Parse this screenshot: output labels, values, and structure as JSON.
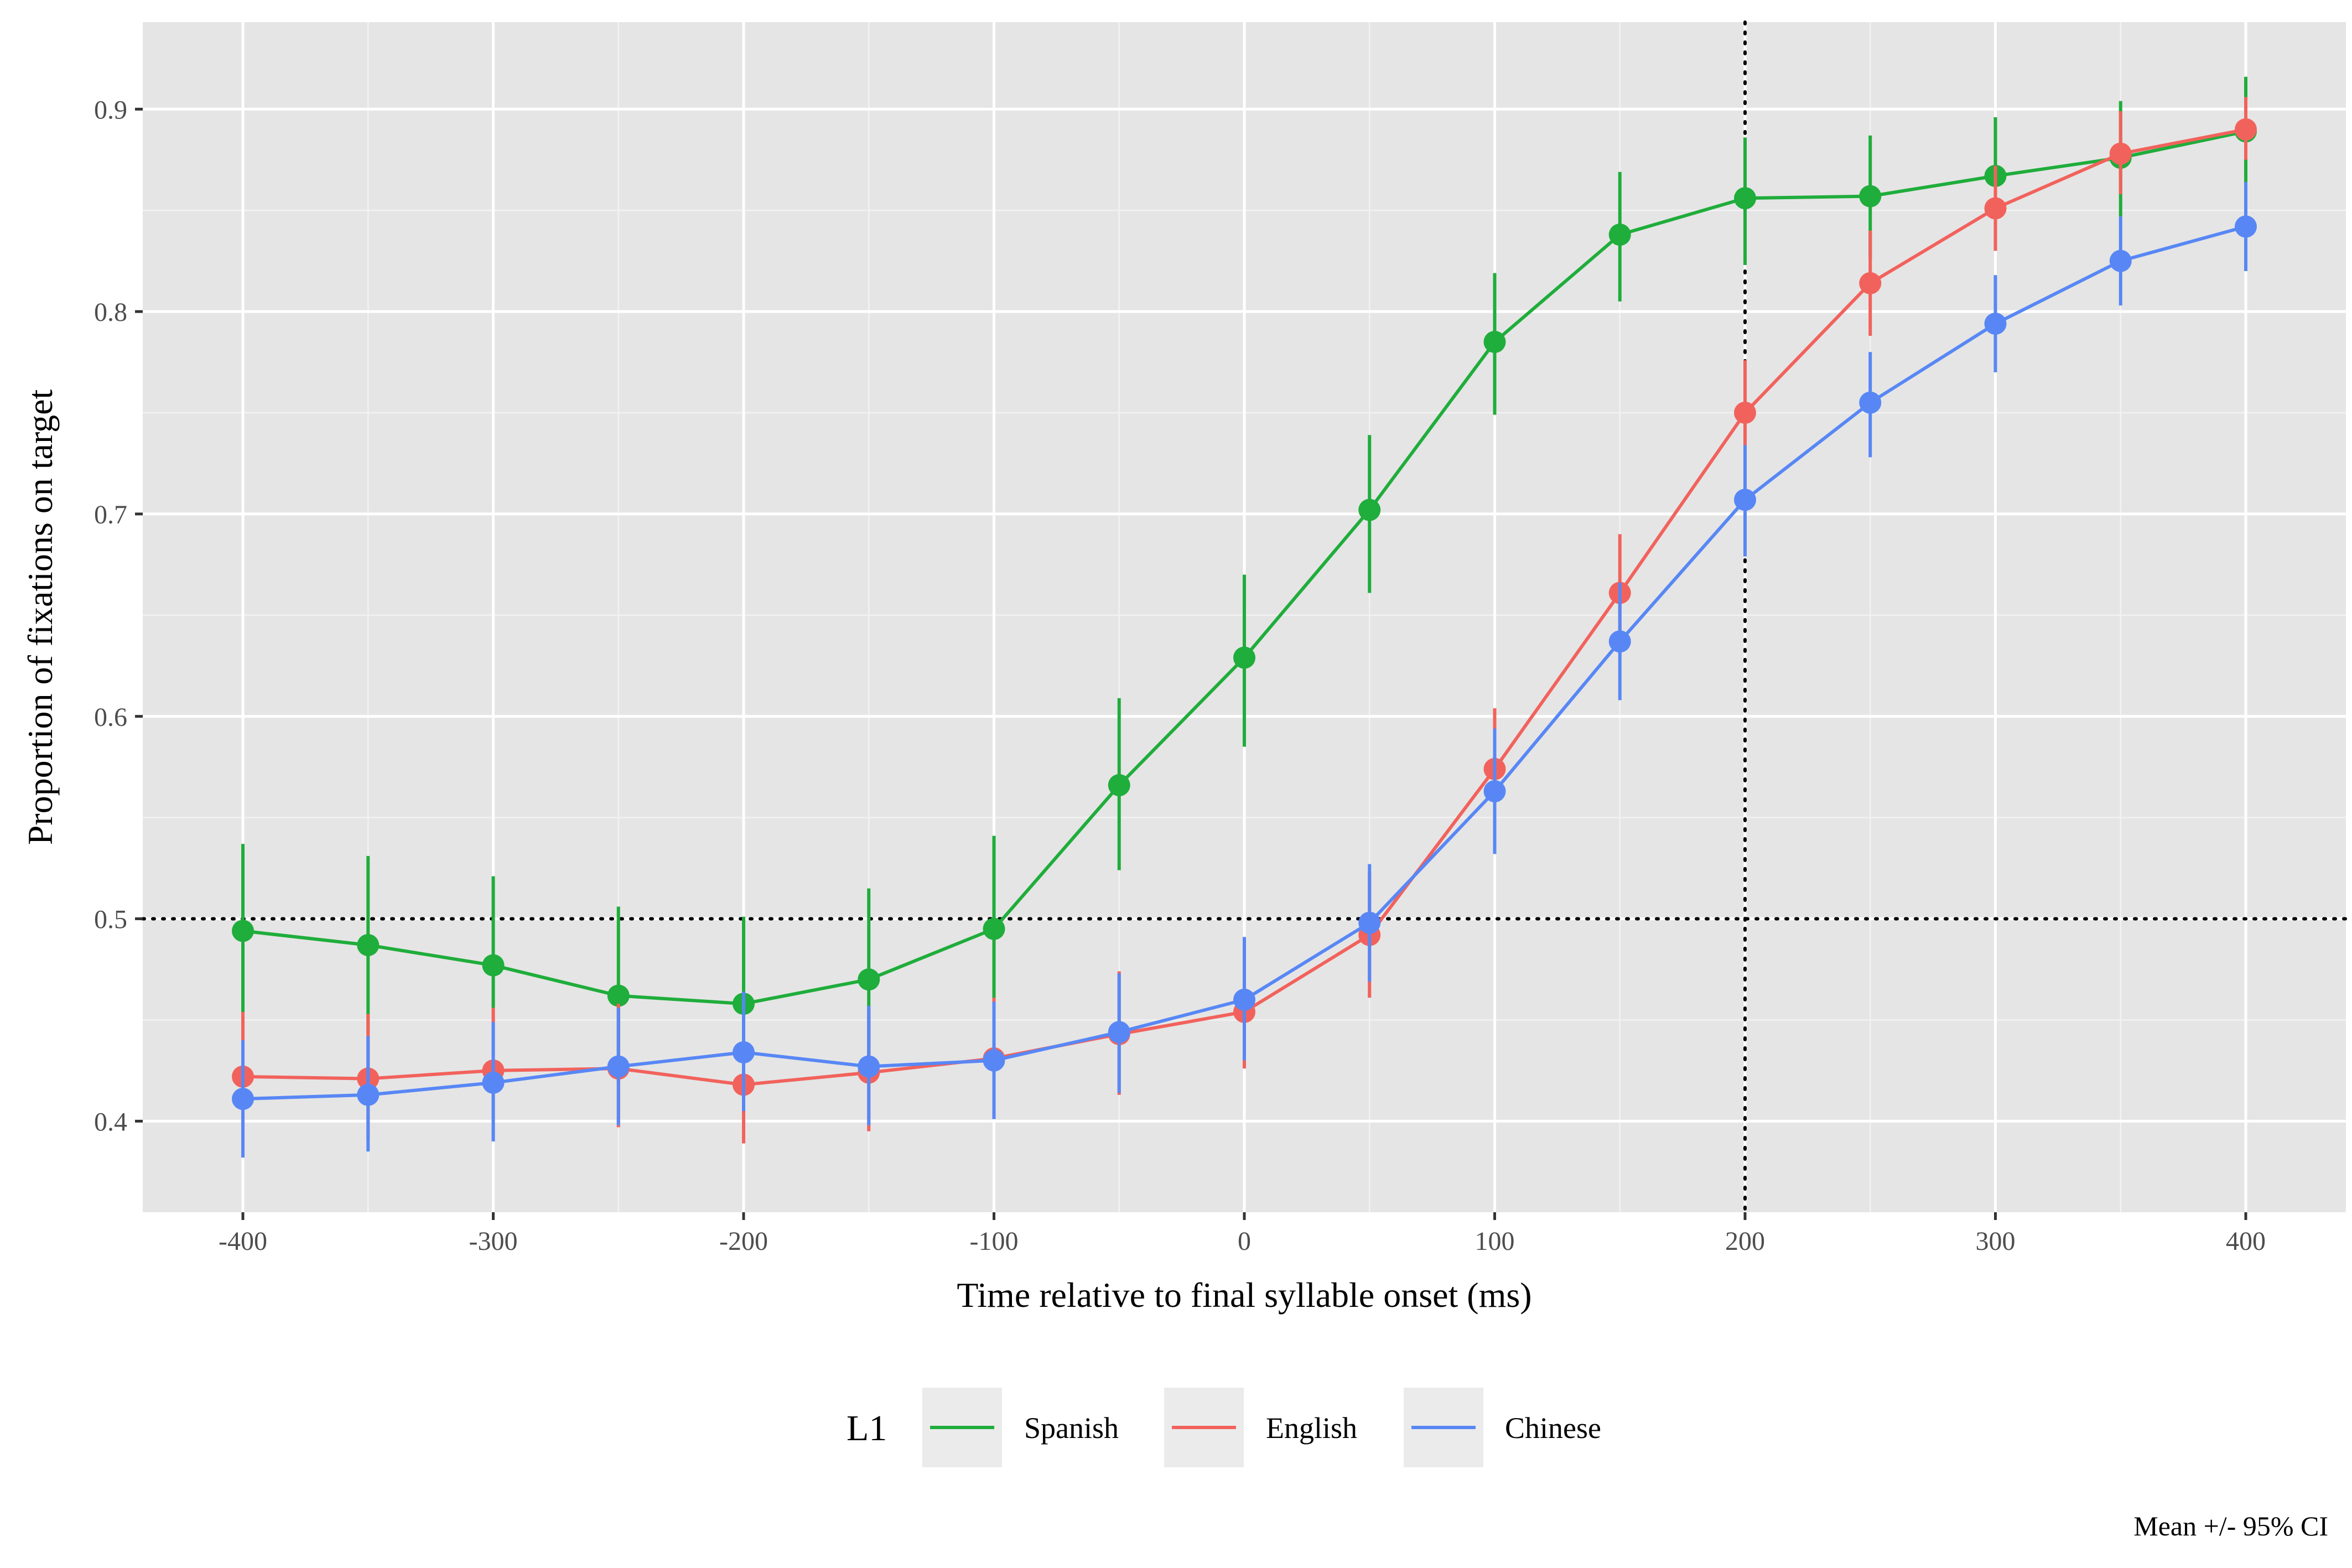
{
  "chart_data": {
    "type": "line",
    "xlabel": "Time relative to final syllable onset (ms)",
    "ylabel": "Proportion of fixations on target",
    "caption": "Mean +/- 95% CI",
    "xlim": [
      -440,
      440
    ],
    "ylim": [
      0.355,
      0.943
    ],
    "x_ticks": [
      -400,
      -300,
      -200,
      -100,
      0,
      100,
      200,
      300,
      400
    ],
    "x_tick_labels": [
      "-400",
      "-300",
      "-200",
      "-100",
      "0",
      "100",
      "200",
      "300",
      "400"
    ],
    "y_ticks": [
      0.4,
      0.5,
      0.6,
      0.7,
      0.8,
      0.9
    ],
    "y_tick_labels": [
      "0.4",
      "0.5",
      "0.6",
      "0.7",
      "0.8",
      "0.9"
    ],
    "reference_lines": {
      "horizontal": 0.5,
      "vertical": 200,
      "style": "dotted"
    },
    "legend": {
      "title": "L1",
      "position": "bottom"
    },
    "grid": true,
    "x": [
      -400,
      -350,
      -300,
      -250,
      -200,
      -150,
      -100,
      -50,
      0,
      50,
      100,
      150,
      200,
      250,
      300,
      350,
      400
    ],
    "series": [
      {
        "name": "Spanish",
        "color": "#1fad3b",
        "values": [
          0.494,
          0.487,
          0.477,
          0.462,
          0.458,
          0.47,
          0.495,
          0.566,
          0.629,
          0.702,
          0.785,
          0.838,
          0.856,
          0.857,
          0.867,
          0.876,
          0.889
        ],
        "ci_low": [
          0.453,
          0.443,
          0.435,
          0.418,
          0.416,
          0.426,
          0.451,
          0.524,
          0.585,
          0.661,
          0.749,
          0.805,
          0.823,
          0.826,
          0.836,
          0.847,
          0.86
        ],
        "ci_high": [
          0.537,
          0.531,
          0.521,
          0.506,
          0.501,
          0.515,
          0.541,
          0.609,
          0.67,
          0.739,
          0.819,
          0.869,
          0.886,
          0.887,
          0.896,
          0.904,
          0.916
        ]
      },
      {
        "name": "English",
        "color": "#f2625c",
        "values": [
          0.422,
          0.421,
          0.425,
          0.426,
          0.418,
          0.424,
          0.431,
          0.443,
          0.454,
          0.492,
          0.574,
          0.661,
          0.75,
          0.814,
          0.851,
          0.878,
          0.89
        ],
        "ci_low": [
          0.392,
          0.391,
          0.396,
          0.397,
          0.389,
          0.395,
          0.402,
          0.413,
          0.426,
          0.461,
          0.544,
          0.631,
          0.72,
          0.788,
          0.83,
          0.858,
          0.875
        ],
        "ci_high": [
          0.454,
          0.453,
          0.456,
          0.458,
          0.448,
          0.455,
          0.461,
          0.474,
          0.483,
          0.523,
          0.604,
          0.69,
          0.776,
          0.84,
          0.872,
          0.899,
          0.906
        ]
      },
      {
        "name": "Chinese",
        "color": "#5887f5",
        "values": [
          0.411,
          0.413,
          0.419,
          0.427,
          0.434,
          0.427,
          0.43,
          0.444,
          0.46,
          0.498,
          0.563,
          0.637,
          0.707,
          0.755,
          0.794,
          0.825,
          0.842
        ],
        "ci_low": [
          0.382,
          0.385,
          0.39,
          0.398,
          0.405,
          0.398,
          0.401,
          0.414,
          0.43,
          0.469,
          0.532,
          0.608,
          0.679,
          0.728,
          0.77,
          0.803,
          0.82
        ],
        "ci_high": [
          0.44,
          0.442,
          0.449,
          0.456,
          0.464,
          0.457,
          0.459,
          0.473,
          0.491,
          0.527,
          0.594,
          0.666,
          0.734,
          0.78,
          0.818,
          0.847,
          0.864
        ]
      }
    ]
  }
}
